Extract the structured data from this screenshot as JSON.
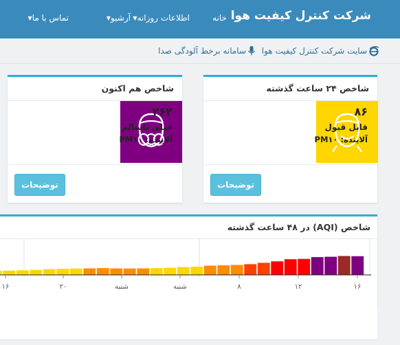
{
  "navbar": {
    "brand": "شرکت کنترل کیفیت هوا",
    "items": [
      {
        "label": "خانه",
        "dropdown": false
      },
      {
        "label": "اطلاعات روزانه",
        "dropdown": true
      },
      {
        "label": "آرشیو",
        "dropdown": true
      },
      {
        "label": "تماس با ما",
        "dropdown": true
      }
    ]
  },
  "subnav": {
    "site_link": "سایت شرکت کنترل کیفیت هوا",
    "noise_link": "سامانه برخط آلودگی صدا"
  },
  "cards": [
    {
      "title": "شاخص ۲۴ ساعت گذشته",
      "value": "۸۶",
      "status": "قابل قبول",
      "pollutant": "آلاینده: PM۱۰",
      "color": "#ffd600",
      "icon": "face-smile-icon",
      "button": "توضیحات"
    },
    {
      "title": "شاخص هم اکنون",
      "value": "۲۶۲",
      "status": "خیلی ناسالم",
      "pollutant": "آلاینده: PM۱۰",
      "color": "#7e0081",
      "icon": "gas-mask-icon",
      "button": "توضیحات"
    }
  ],
  "chart_data": {
    "type": "bar",
    "title": "شاخص (AQI) در ۴۸ ساعت گذشته",
    "x_tick_labels": [
      "۱۶",
      "۱۲",
      "۸",
      "شنبه",
      "شنبه",
      "۲۰",
      "۱۶"
    ],
    "values": [
      55,
      55,
      55,
      55,
      55,
      55,
      55,
      55,
      55,
      60,
      65,
      70,
      80,
      85,
      90,
      92,
      95,
      92,
      90,
      92,
      95,
      100,
      110,
      115,
      130,
      135,
      140,
      150,
      170,
      190,
      220,
      225,
      250,
      255,
      265,
      262
    ],
    "colors": [
      "#ffd600",
      "#ffd600",
      "#ffd600",
      "#ffd600",
      "#ffd600",
      "#ffd600",
      "#ffd600",
      "#ffd600",
      "#ffd600",
      "#ffd600",
      "#ffd600",
      "#ffd600",
      "#ffd600",
      "#ffd600",
      "#ffd600",
      "#ff8c00",
      "#ff8c00",
      "#ff8c00",
      "#ff8c00",
      "#ff8c00",
      "#ffd600",
      "#ffd600",
      "#ffd600",
      "#ffd600",
      "#ff8c00",
      "#ff8c00",
      "#ff8c00",
      "#ff4000",
      "#ff4000",
      "#ff0000",
      "#ff0000",
      "#ff0000",
      "#7e0081",
      "#7e0081",
      "#9c2a2a",
      "#7e0081"
    ]
  }
}
